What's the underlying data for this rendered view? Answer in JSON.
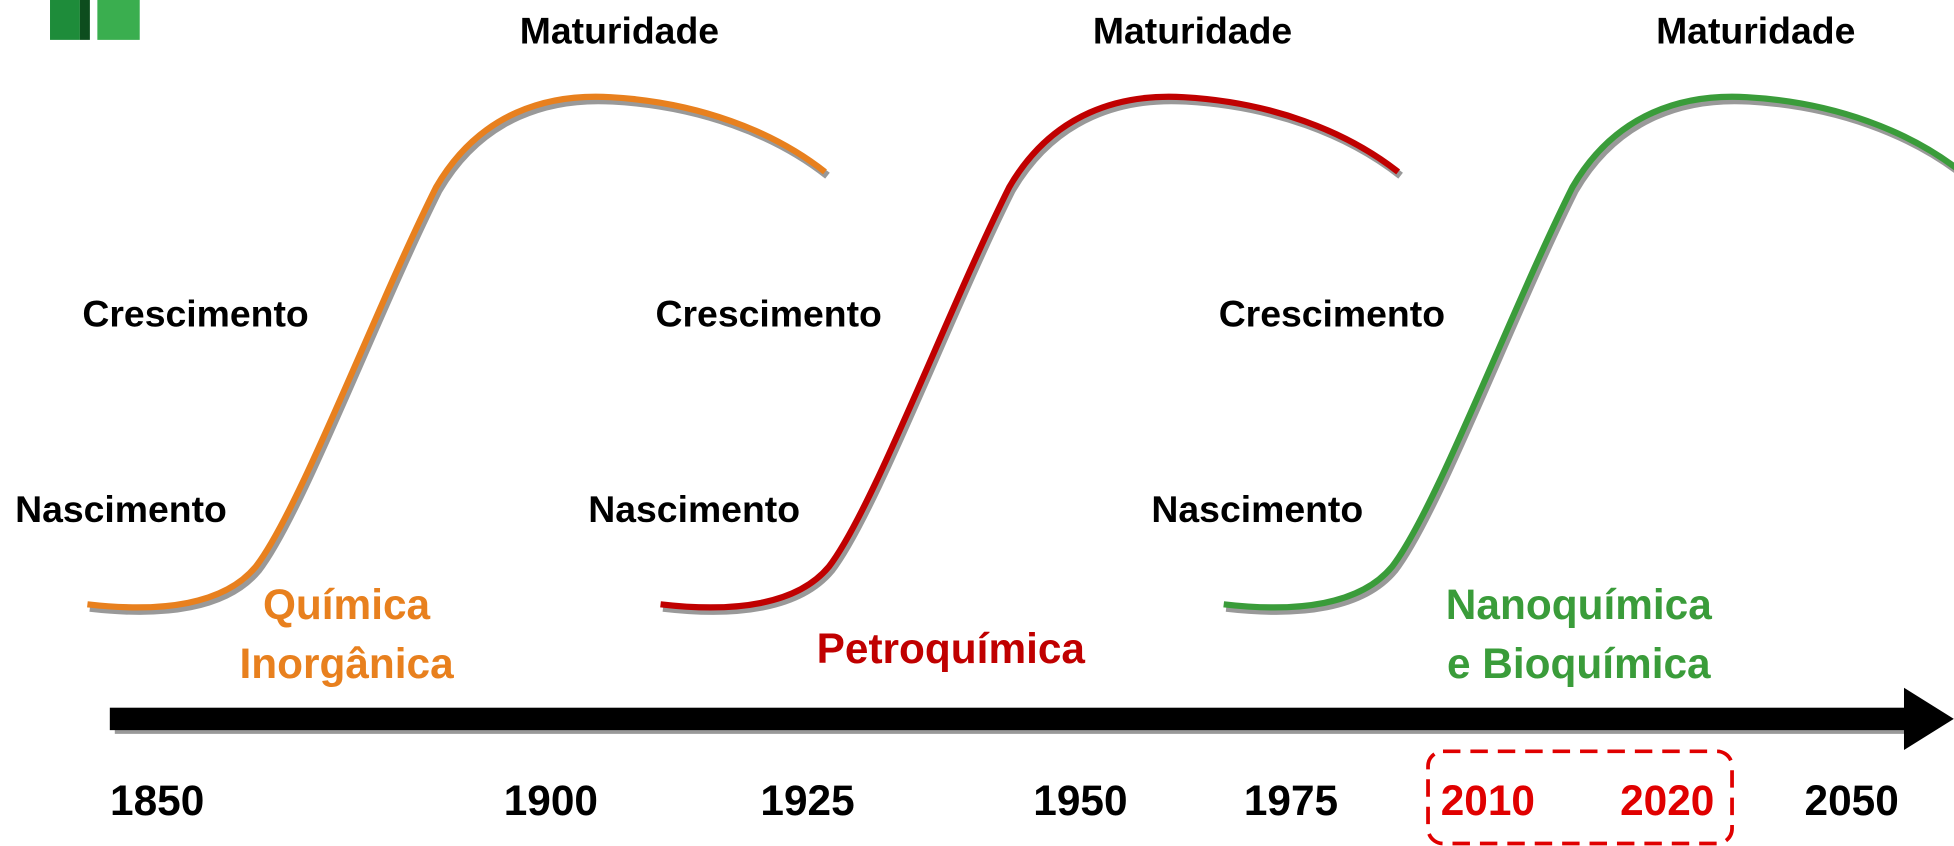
{
  "curves": [
    {
      "lines": [
        "Química",
        "Inorgânica"
      ],
      "color": "#e8801e",
      "maturity": "Maturidade",
      "growth": "Crescimento",
      "birth": "Nascimento"
    },
    {
      "lines": [
        "Petroquímica"
      ],
      "color": "#c00000",
      "maturity": "Maturidade",
      "growth": "Crescimento",
      "birth": "Nascimento"
    },
    {
      "lines": [
        "Nanoquímica",
        "e Bioquímica"
      ],
      "color": "#3a9c3a",
      "maturity": "Maturidade",
      "growth": "Crescimento",
      "birth": "Nascimento"
    }
  ],
  "timeline": {
    "years": [
      {
        "label": "1850",
        "highlight": false
      },
      {
        "label": "1900",
        "highlight": false
      },
      {
        "label": "1925",
        "highlight": false
      },
      {
        "label": "1950",
        "highlight": false
      },
      {
        "label": "1975",
        "highlight": false
      },
      {
        "label": "2010",
        "highlight": true
      },
      {
        "label": "2020",
        "highlight": true
      },
      {
        "label": "2050",
        "highlight": false
      }
    ]
  }
}
